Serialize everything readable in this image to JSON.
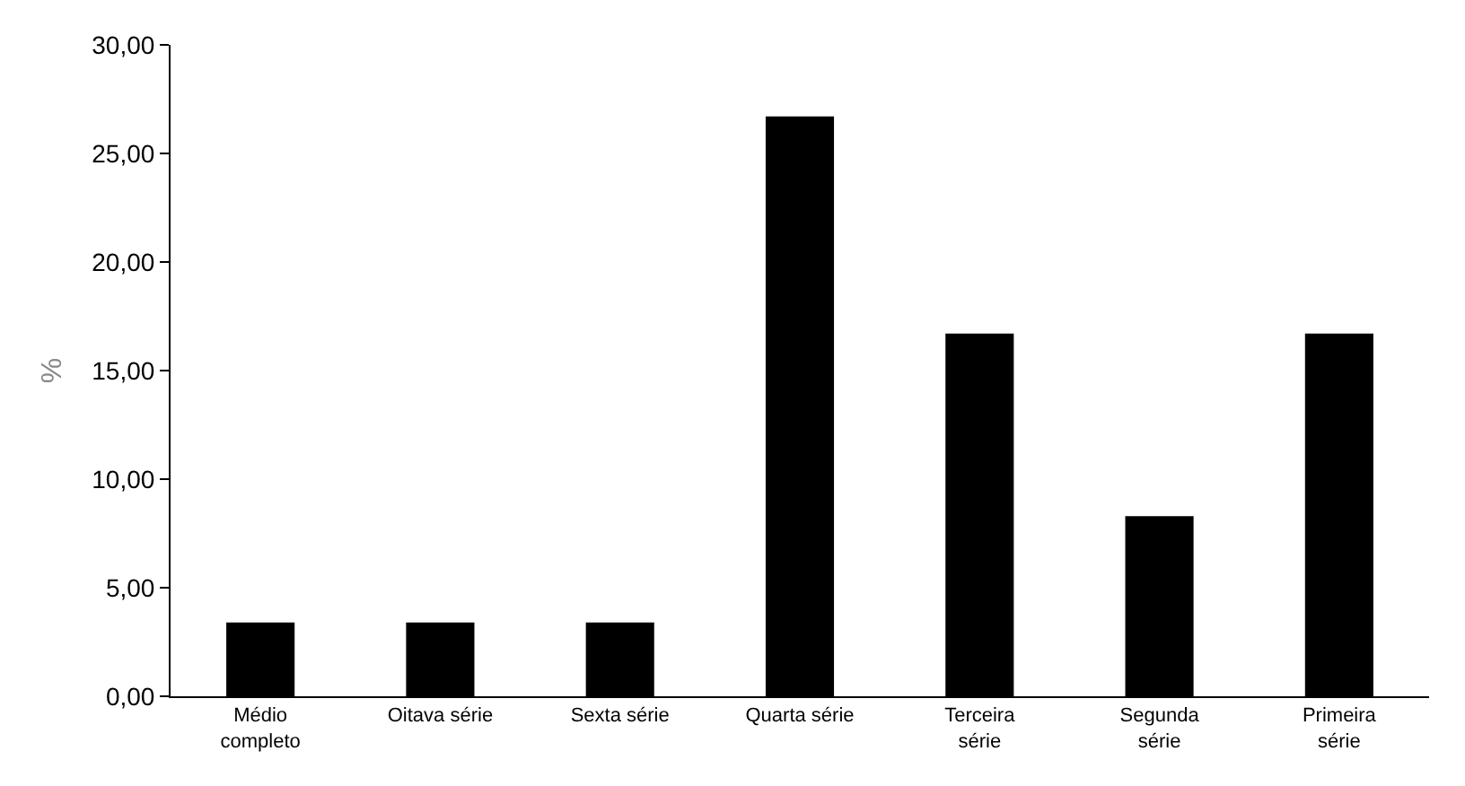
{
  "chart_data": {
    "type": "bar",
    "ylabel": "%",
    "categories": [
      "Médio completo",
      "Oitava série",
      "Sexta série",
      "Quarta série",
      "Terceira série",
      "Segunda série",
      "Primeira série"
    ],
    "values": [
      3.4,
      3.4,
      3.4,
      26.7,
      16.7,
      8.3,
      16.7
    ],
    "color": "#000000",
    "ylim": [
      0,
      30
    ],
    "yticks": [
      {
        "value": 0,
        "label": "0,00"
      },
      {
        "value": 5,
        "label": "5,00"
      },
      {
        "value": 10,
        "label": "10,00"
      },
      {
        "value": 15,
        "label": "15,00"
      },
      {
        "value": 20,
        "label": "20,00"
      },
      {
        "value": 25,
        "label": "25,00"
      },
      {
        "value": 30,
        "label": "30,00"
      }
    ],
    "grid": false
  }
}
